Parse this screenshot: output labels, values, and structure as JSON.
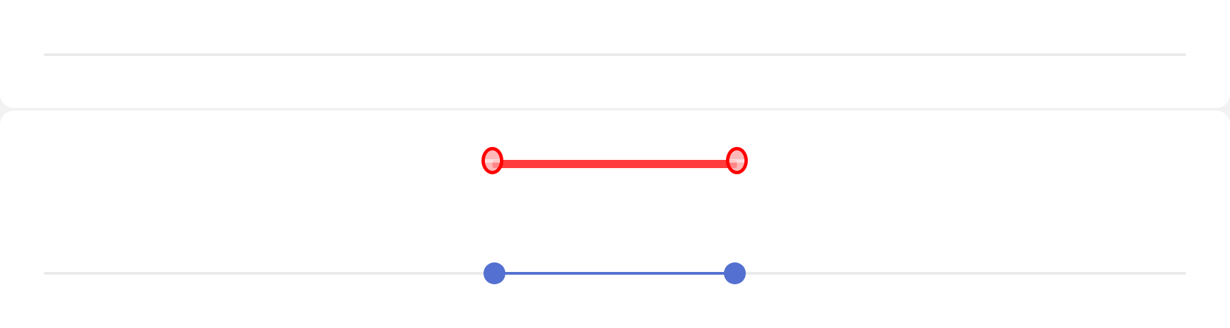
{
  "theme": {
    "page_background": "#f2f2f2",
    "card_background": "#ffffff",
    "track_color": "#ebebeb",
    "accent_color": "#5470d0",
    "annotation_color": "#ff0000"
  },
  "top_slider": {
    "icon": "slider-track"
  },
  "range_slider": {
    "min_value_fraction": 0.4,
    "max_value_fraction": 0.61,
    "thumb_icon": "circle-thumb"
  },
  "annotation": {
    "icon": "drag-gesture-marker"
  }
}
